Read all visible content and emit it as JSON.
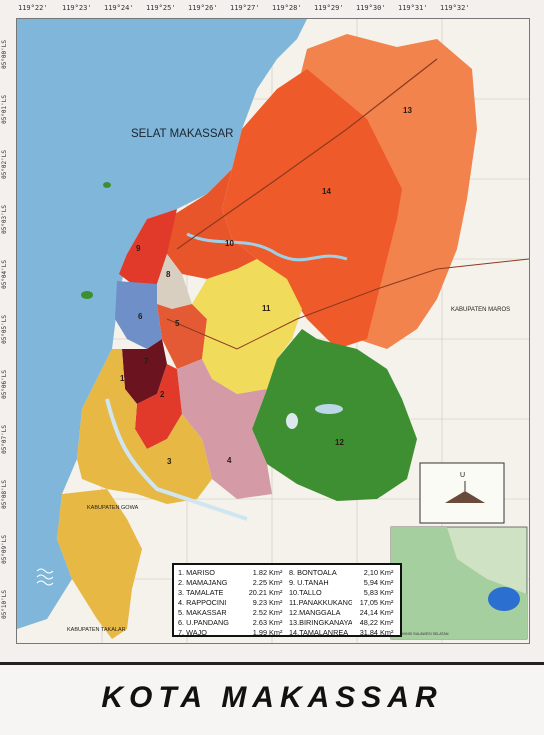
{
  "map": {
    "sea_label": "SELAT MAKASSAR",
    "neighbor_labels": {
      "maros": "KABUPATEN MAROS",
      "gowa": "KABUPATEN GOWA",
      "takalar": "KABUPATEN TAKALAR"
    },
    "district_markers": [
      "1",
      "2",
      "3",
      "4",
      "5",
      "6",
      "7",
      "8",
      "9",
      "10",
      "11",
      "12",
      "13",
      "14"
    ],
    "compass_label": "U",
    "inset_caption": "PROVINSI SULAWESI SELATAN",
    "colors": {
      "sea": "#7fb6d9",
      "land": "#f4f2ea",
      "orange_red": "#ef5a2a",
      "orange_light": "#f2834d",
      "yellow": "#f0dc5a",
      "gold": "#e8b845",
      "green": "#3e8f31",
      "pink": "#d49aa6",
      "blue": "#6f8fc8",
      "dark_red": "#6b1420",
      "red": "#e23a2a"
    }
  },
  "coords": {
    "top": [
      "119°22'",
      "119°23'",
      "119°24'",
      "119°25'",
      "119°26'",
      "119°27'",
      "119°28'",
      "119°29'",
      "119°30'",
      "119°31'",
      "119°32'"
    ],
    "left": [
      "05°00'LS",
      "05°01'LS",
      "05°02'LS",
      "05°03'LS",
      "05°04'LS",
      "05°05'LS",
      "05°06'LS",
      "05°07'LS",
      "05°08'LS",
      "05°09'LS",
      "05°10'LS"
    ]
  },
  "legend": {
    "rows": [
      {
        "left": {
          "name": "1. MARISO",
          "area": "1.82",
          "unit": "Km²"
        },
        "right": {
          "name": "8. BONTOALA",
          "area": "2,10",
          "unit": "Km²"
        }
      },
      {
        "left": {
          "name": "2. MAMAJANG",
          "area": "2.25",
          "unit": "Km²"
        },
        "right": {
          "name": "9. U.TANAH",
          "area": "5,94",
          "unit": "Km²"
        }
      },
      {
        "left": {
          "name": "3. TAMALATE",
          "area": "20.21",
          "unit": "Km²"
        },
        "right": {
          "name": "10.TALLO",
          "area": "5,83",
          "unit": "Km²"
        }
      },
      {
        "left": {
          "name": "4. RAPPOCINI",
          "area": "9.23",
          "unit": "Km²"
        },
        "right": {
          "name": "11.PANAKKUKANG",
          "area": "17,05",
          "unit": "Km²"
        }
      },
      {
        "left": {
          "name": "5. MAKASSAR",
          "area": "2.52",
          "unit": "Km²"
        },
        "right": {
          "name": "12.MANGGALA",
          "area": "24,14",
          "unit": "Km²"
        }
      },
      {
        "left": {
          "name": "6. U.PANDANG",
          "area": "2.63",
          "unit": "Km²"
        },
        "right": {
          "name": "13.BIRINGKANAYA",
          "area": "48,22",
          "unit": "Km²"
        }
      },
      {
        "left": {
          "name": "7. WAJO",
          "area": "1.99",
          "unit": "Km²"
        },
        "right": {
          "name": "14.TAMALANREA",
          "area": "31,84",
          "unit": "Km²"
        }
      }
    ]
  },
  "title": "KOTA MAKASSAR"
}
